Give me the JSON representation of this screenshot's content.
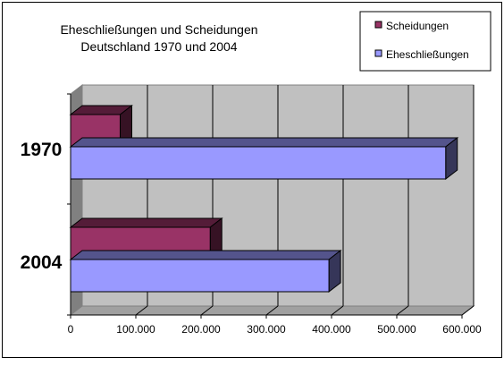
{
  "chart_data": {
    "type": "bar",
    "orientation": "horizontal",
    "title_lines": [
      "Eheschließungen und Scheidungen",
      "Deutschland 1970 und 2004"
    ],
    "categories": [
      "1970",
      "2004"
    ],
    "series": [
      {
        "name": "Scheidungen",
        "values": [
          76000,
          214000
        ],
        "color": "#993366"
      },
      {
        "name": "Eheschließungen",
        "values": [
          575000,
          396000
        ],
        "color": "#9999ff"
      }
    ],
    "x_ticks": [
      "0",
      "100.000",
      "200.000",
      "300.000",
      "400.000",
      "500.000",
      "600.000"
    ],
    "xlim": [
      0,
      600000
    ],
    "grid": true,
    "legend_position": "top-right",
    "style": "3d"
  }
}
